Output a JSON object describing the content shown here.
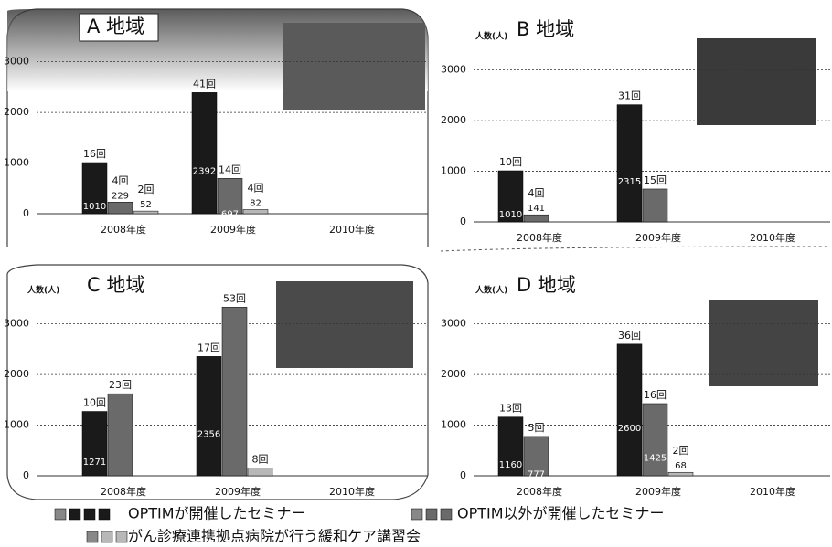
{
  "charts": {
    "chart_data": [
      {
        "type": "bar",
        "title": "A 地域",
        "categories": [
          "2008年度",
          "2009年度",
          "2010年度"
        ],
        "series": [
          {
            "values": [
              1010,
              2392,
              null
            ],
            "value_labels": [
              "1010",
              "2392",
              null
            ],
            "count_labels": [
              "16回",
              "41回",
              null
            ]
          },
          {
            "values": [
              229,
              697,
              null
            ],
            "value_labels": [
              "229",
              "697",
              null
            ],
            "count_labels": [
              "4回",
              "14回",
              null
            ]
          },
          {
            "values": [
              52,
              82,
              null
            ],
            "value_labels": [
              "52",
              "82",
              null
            ],
            "count_labels": [
              "2回",
              "4回",
              null
            ]
          }
        ],
        "ylim": [
          0,
          3300
        ],
        "yticks": [
          0,
          1000,
          2000,
          3000
        ],
        "grid": true
      },
      {
        "type": "bar",
        "title": "B 地域",
        "y_label": "人数(人)",
        "categories": [
          "2008年度",
          "2009年度",
          "2010年度"
        ],
        "series": [
          {
            "values": [
              1010,
              2315,
              null
            ],
            "value_labels": [
              "1010",
              "2315",
              null
            ],
            "count_labels": [
              "10回",
              "31回",
              null
            ]
          },
          {
            "values": [
              141,
              650,
              null
            ],
            "value_labels": [
              "141",
              null,
              null
            ],
            "count_labels": [
              "4回",
              "15回",
              null
            ]
          },
          {
            "values": [
              null,
              null,
              null
            ],
            "value_labels": [
              null,
              null,
              null
            ],
            "count_labels": [
              null,
              null,
              null
            ]
          }
        ],
        "ylim": [
          0,
          3300
        ],
        "yticks": [
          0,
          1000,
          2000,
          3000
        ],
        "grid": true
      },
      {
        "type": "bar",
        "title": "C 地域",
        "y_label": "人数(人)",
        "categories": [
          "2008年度",
          "2009年度",
          "2010年度"
        ],
        "series": [
          {
            "values": [
              1271,
              2356,
              null
            ],
            "value_labels": [
              "1271",
              "2356",
              null
            ],
            "count_labels": [
              "10回",
              "17回",
              null
            ]
          },
          {
            "values": [
              1620,
              3330,
              null
            ],
            "value_labels": [
              null,
              null,
              null
            ],
            "count_labels": [
              "23回",
              "53回",
              null
            ]
          },
          {
            "values": [
              null,
              150,
              null
            ],
            "value_labels": [
              null,
              null,
              null
            ],
            "count_labels": [
              null,
              "8回",
              null
            ]
          }
        ],
        "ylim": [
          0,
          3300
        ],
        "yticks": [
          0,
          1000,
          2000,
          3000
        ],
        "grid": true
      },
      {
        "type": "bar",
        "title": "D 地域",
        "y_label": "人数(人)",
        "categories": [
          "2008年度",
          "2009年度",
          "2010年度"
        ],
        "series": [
          {
            "values": [
              1160,
              2600,
              null
            ],
            "value_labels": [
              "1160",
              "2600",
              null
            ],
            "count_labels": [
              "13回",
              "36回",
              null
            ]
          },
          {
            "values": [
              777,
              1425,
              null
            ],
            "value_labels": [
              "777",
              "1425",
              null
            ],
            "count_labels": [
              "5回",
              "16回",
              null
            ]
          },
          {
            "values": [
              null,
              68,
              null
            ],
            "value_labels": [
              null,
              "68",
              null
            ],
            "count_labels": [
              null,
              "2回",
              null
            ]
          }
        ],
        "ylim": [
          0,
          3300
        ],
        "yticks": [
          0,
          1000,
          2000,
          3000
        ],
        "grid": true
      }
    ]
  },
  "legend": [
    {
      "name": "OPTIMが開催したセミナー",
      "color": "#1a1a1a"
    },
    {
      "name": "OPTIM以外が開催したセミナー",
      "color": "#6a6a6a"
    },
    {
      "name": "がん診療連携拠点病院が行う緩和ケア講習会",
      "color": "#b8b8b8"
    }
  ]
}
